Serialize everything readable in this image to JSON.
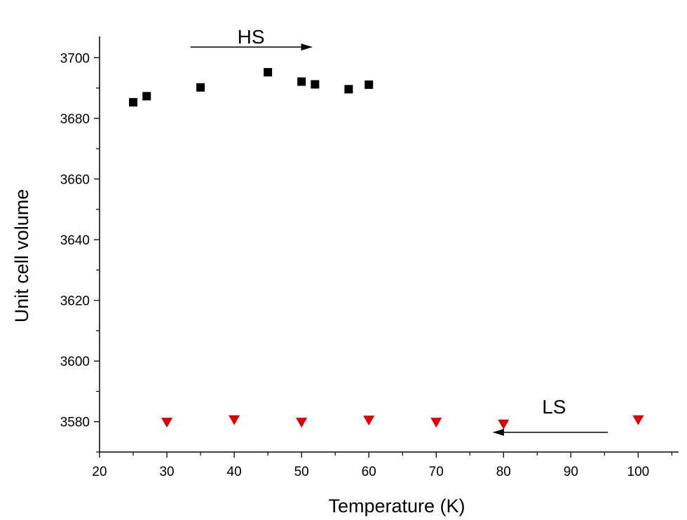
{
  "chart_data": {
    "type": "scatter",
    "title": "",
    "xlabel": "Temperature (K)",
    "ylabel": "Unit cell volume",
    "xlim": [
      20,
      106
    ],
    "ylim": [
      3570,
      3707
    ],
    "x_ticks": [
      20,
      30,
      40,
      50,
      60,
      70,
      80,
      90,
      100
    ],
    "y_ticks": [
      3580,
      3600,
      3620,
      3640,
      3660,
      3680,
      3700
    ],
    "grid": false,
    "legend": "none",
    "series": [
      {
        "marker": "square",
        "color": "#000000",
        "x": [
          25,
          27,
          35,
          45,
          50,
          52,
          57,
          60
        ],
        "y": [
          3685.3,
          3687.3,
          3690.2,
          3695.2,
          3692.1,
          3691.2,
          3689.6,
          3691.1
        ]
      },
      {
        "marker": "triangle-down",
        "color": "#e00000",
        "x": [
          30,
          40,
          50,
          60,
          70,
          80,
          100
        ],
        "y": [
          3579.9,
          3580.7,
          3579.9,
          3580.6,
          3579.9,
          3579.3,
          3580.7
        ]
      }
    ],
    "annotations": [
      {
        "text": "HS",
        "arrow": {
          "from_x": 33.5,
          "to_x": 51.5,
          "y": 3703.5,
          "direction": "right"
        },
        "text_x": 42.5,
        "text_y": 3707
      },
      {
        "text": "LS",
        "arrow": {
          "from_x": 95.5,
          "to_x": 78.5,
          "y": 3576.5,
          "direction": "left"
        },
        "text_x": 87.5,
        "text_y": 3585
      }
    ]
  }
}
